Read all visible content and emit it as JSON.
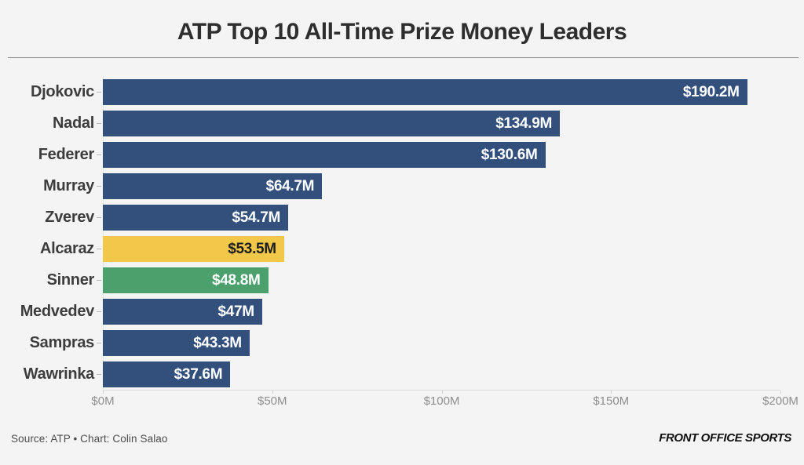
{
  "title": "ATP Top 10 All-Time Prize Money Leaders",
  "chart_data": {
    "type": "bar",
    "orientation": "horizontal",
    "title": "ATP Top 10 All-Time Prize Money Leaders",
    "categories": [
      "Djokovic",
      "Nadal",
      "Federer",
      "Murray",
      "Zverev",
      "Alcaraz",
      "Sinner",
      "Medvedev",
      "Sampras",
      "Wawrinka"
    ],
    "values": [
      190.2,
      134.9,
      130.6,
      64.7,
      54.7,
      53.5,
      48.8,
      47,
      43.3,
      37.6
    ],
    "value_labels": [
      "$190.2M",
      "$134.9M",
      "$130.6M",
      "$64.7M",
      "$54.7M",
      "$53.5M",
      "$48.8M",
      "$47M",
      "$43.3M",
      "$37.6M"
    ],
    "bar_colors": [
      "#33507D",
      "#33507D",
      "#33507D",
      "#33507D",
      "#33507D",
      "#F2C84B",
      "#4BA06C",
      "#33507D",
      "#33507D",
      "#33507D"
    ],
    "value_label_colors": [
      "#ffffff",
      "#ffffff",
      "#ffffff",
      "#ffffff",
      "#ffffff",
      "#1d1d1d",
      "#ffffff",
      "#ffffff",
      "#ffffff",
      "#ffffff"
    ],
    "xlabel": "",
    "ylabel": "",
    "xlim": [
      0,
      200
    ],
    "x_ticks": [
      "$0M",
      "$50M",
      "$100M",
      "$150M",
      "$200M"
    ],
    "grid": false,
    "legend": "none"
  },
  "colors": {
    "background": "#F5F4F4",
    "bar_default": "#33507D",
    "bar_highlight_alcaraz": "#F2C84B",
    "bar_highlight_sinner": "#4BA06C",
    "title_text": "#2E2E2E",
    "axis_text": "#8F8E8E"
  },
  "footer": {
    "source": "Source: ATP • Chart: Colin Salao",
    "brand": "FRONT OFFICE SPORTS"
  }
}
